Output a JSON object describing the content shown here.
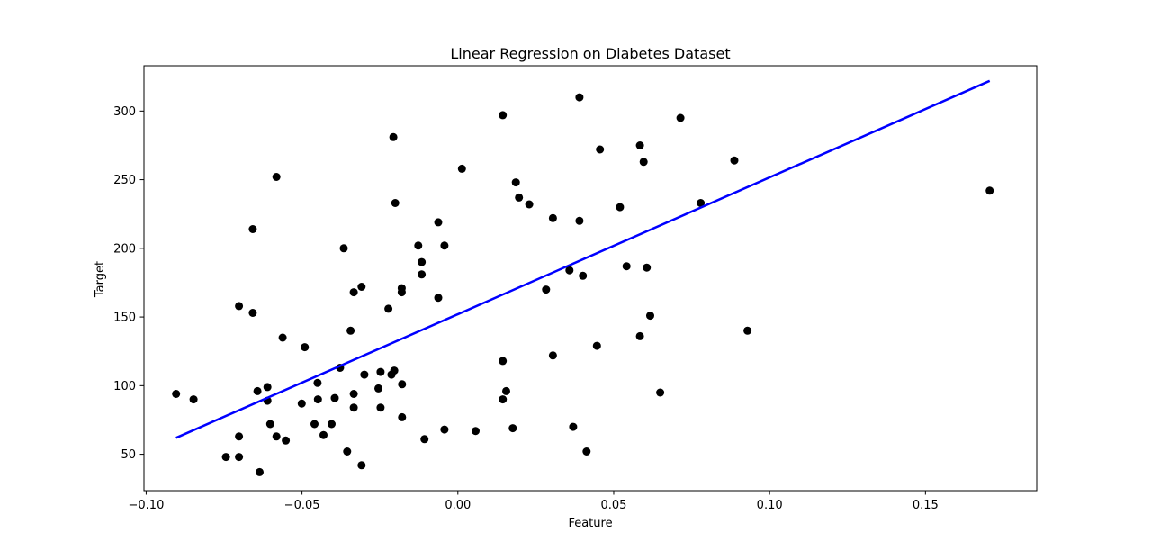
{
  "chart_data": {
    "type": "scatter",
    "title": "Linear Regression on Diabetes Dataset",
    "xlabel": "Feature",
    "ylabel": "Target",
    "xlim": [
      -0.1007,
      0.1857
    ],
    "ylim": [
      23.5,
      333
    ],
    "xticks": [
      -0.1,
      -0.05,
      0.0,
      0.05,
      0.1,
      0.15
    ],
    "xtick_labels": [
      "−0.10",
      "−0.05",
      "0.00",
      "0.05",
      "0.10",
      "0.15"
    ],
    "yticks": [
      50,
      100,
      150,
      200,
      250,
      300
    ],
    "ytick_labels": [
      "50",
      "100",
      "150",
      "200",
      "250",
      "300"
    ],
    "grid": false,
    "series": [
      {
        "kind": "scatter",
        "color": "#000000",
        "points": [
          [
            -0.0904,
            94
          ],
          [
            -0.0848,
            90
          ],
          [
            -0.0744,
            48
          ],
          [
            -0.0702,
            48
          ],
          [
            -0.0702,
            158
          ],
          [
            -0.0702,
            63
          ],
          [
            -0.0658,
            153
          ],
          [
            -0.0658,
            214
          ],
          [
            -0.0643,
            96
          ],
          [
            -0.0636,
            37
          ],
          [
            -0.0611,
            89
          ],
          [
            -0.0611,
            99
          ],
          [
            -0.0602,
            72
          ],
          [
            -0.0582,
            63
          ],
          [
            -0.0582,
            252
          ],
          [
            -0.0562,
            135
          ],
          [
            -0.0552,
            60
          ],
          [
            -0.0501,
            87
          ],
          [
            -0.0491,
            128
          ],
          [
            -0.046,
            72
          ],
          [
            -0.045,
            102
          ],
          [
            -0.0449,
            90
          ],
          [
            -0.0431,
            64
          ],
          [
            -0.0405,
            72
          ],
          [
            -0.0395,
            91
          ],
          [
            -0.0378,
            113
          ],
          [
            -0.0366,
            200
          ],
          [
            -0.0355,
            52
          ],
          [
            -0.0344,
            140
          ],
          [
            -0.0334,
            168
          ],
          [
            -0.0334,
            94
          ],
          [
            -0.0334,
            84
          ],
          [
            -0.0309,
            172
          ],
          [
            -0.0309,
            42
          ],
          [
            -0.03,
            108
          ],
          [
            -0.0255,
            98
          ],
          [
            -0.0248,
            110
          ],
          [
            -0.0248,
            84
          ],
          [
            -0.0223,
            156
          ],
          [
            -0.0213,
            108
          ],
          [
            -0.0207,
            281
          ],
          [
            -0.0204,
            111
          ],
          [
            -0.0201,
            233
          ],
          [
            -0.018,
            168
          ],
          [
            -0.018,
            171
          ],
          [
            -0.0179,
            101
          ],
          [
            -0.0179,
            77
          ],
          [
            -0.0127,
            202
          ],
          [
            -0.0116,
            190
          ],
          [
            -0.0116,
            181
          ],
          [
            -0.0107,
            61
          ],
          [
            -0.0063,
            219
          ],
          [
            -0.0063,
            164
          ],
          [
            -0.0043,
            68
          ],
          [
            -0.0043,
            202
          ],
          [
            0.0013,
            258
          ],
          [
            0.0057,
            67
          ],
          [
            0.0144,
            297
          ],
          [
            0.0144,
            118
          ],
          [
            0.0144,
            90
          ],
          [
            0.0155,
            96
          ],
          [
            0.0176,
            69
          ],
          [
            0.0186,
            248
          ],
          [
            0.0196,
            237
          ],
          [
            0.0229,
            232
          ],
          [
            0.0283,
            170
          ],
          [
            0.0305,
            222
          ],
          [
            0.0305,
            122
          ],
          [
            0.0358,
            184
          ],
          [
            0.037,
            70
          ],
          [
            0.039,
            220
          ],
          [
            0.039,
            310
          ],
          [
            0.0401,
            180
          ],
          [
            0.0413,
            52
          ],
          [
            0.0446,
            129
          ],
          [
            0.0456,
            272
          ],
          [
            0.052,
            230
          ],
          [
            0.0541,
            187
          ],
          [
            0.0584,
            275
          ],
          [
            0.0584,
            136
          ],
          [
            0.0596,
            263
          ],
          [
            0.0606,
            186
          ],
          [
            0.0617,
            151
          ],
          [
            0.0649,
            95
          ],
          [
            0.0714,
            295
          ],
          [
            0.0779,
            233
          ],
          [
            0.0887,
            264
          ],
          [
            0.0929,
            140
          ],
          [
            0.1706,
            242
          ]
        ]
      },
      {
        "kind": "line",
        "color": "#0000ff",
        "points": [
          [
            -0.0904,
            62
          ],
          [
            0.1706,
            322
          ]
        ]
      }
    ]
  }
}
